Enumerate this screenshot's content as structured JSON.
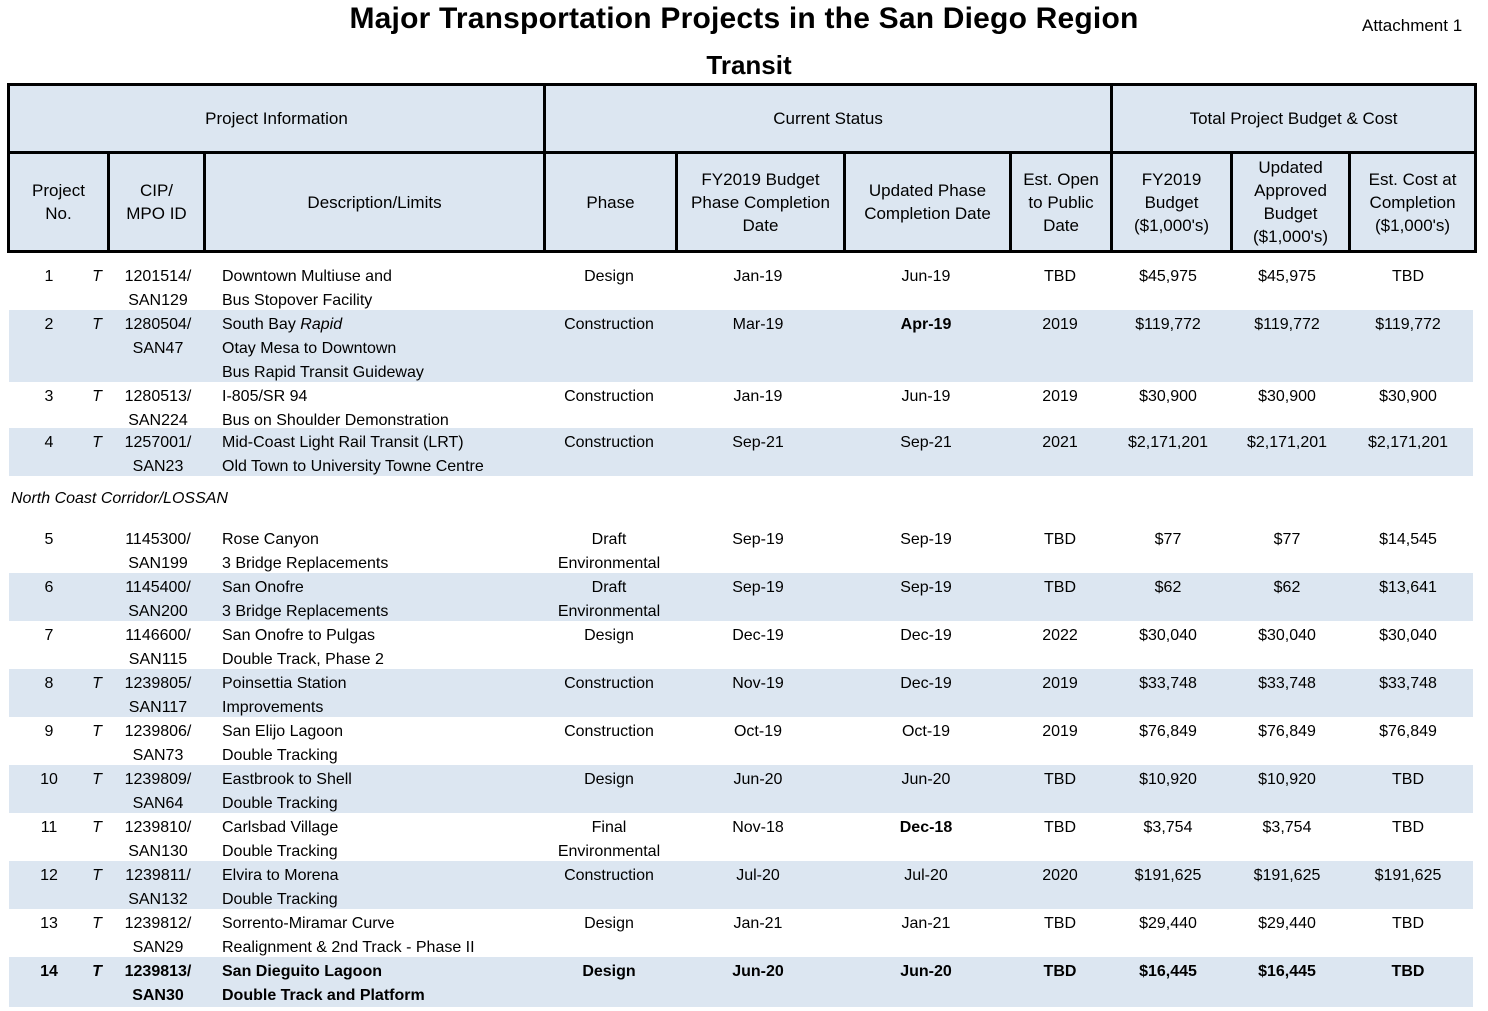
{
  "title": "Major Transportation Projects in the San Diego Region",
  "attachment": "Attachment 1",
  "subtitle": "Transit",
  "header": {
    "groups": [
      "Project Information",
      "Current Status",
      "Total Project Budget & Cost"
    ],
    "columns": [
      [
        "Project",
        "No."
      ],
      [
        "CIP/",
        "MPO ID"
      ],
      [
        "Description/Limits"
      ],
      [
        "Phase"
      ],
      [
        "FY2019 Budget",
        "Phase Completion",
        "Date"
      ],
      [
        "Updated Phase",
        "Completion Date"
      ],
      [
        "Est. Open",
        "to Public",
        "Date"
      ],
      [
        "FY2019",
        "Budget",
        "($1,000's)"
      ],
      [
        "Updated",
        "Approved",
        "Budget",
        "($1,000's)"
      ],
      [
        "Est. Cost at",
        "Completion",
        "($1,000's)"
      ]
    ]
  },
  "section_label": "North Coast Corridor/LOSSAN",
  "rows": [
    {
      "no": "1",
      "t": "T",
      "cip": [
        "1201514/",
        "SAN129"
      ],
      "desc": [
        [
          "Downtown Multiuse and"
        ],
        [
          "Bus Stopover Facility"
        ]
      ],
      "phase": [
        "Design"
      ],
      "fy": "Jan-19",
      "upd": "Jun-19",
      "open": "TBD",
      "b1": "$45,975",
      "b2": "$45,975",
      "b3": "TBD"
    },
    {
      "no": "2",
      "t": "T",
      "cip": [
        "1280504/",
        "SAN47"
      ],
      "desc": [
        [
          "South Bay ",
          "Rapid"
        ],
        [
          "Otay Mesa to Downtown"
        ],
        [
          "Bus Rapid Transit Guideway"
        ]
      ],
      "phase": [
        "Construction"
      ],
      "fy": "Mar-19",
      "upd": "Apr-19",
      "open": "2019",
      "b1": "$119,772",
      "b2": "$119,772",
      "b3": "$119,772"
    },
    {
      "no": "3",
      "t": "T",
      "cip": [
        "1280513/",
        "SAN224"
      ],
      "desc": [
        [
          "I-805/SR 94"
        ],
        [
          "Bus on Shoulder Demonstration"
        ]
      ],
      "phase": [
        "Construction"
      ],
      "fy": "Jan-19",
      "upd": "Jun-19",
      "open": "2019",
      "b1": "$30,900",
      "b2": "$30,900",
      "b3": "$30,900"
    },
    {
      "no": "4",
      "t": "T",
      "cip": [
        "1257001/",
        "SAN23"
      ],
      "desc": [
        [
          "Mid-Coast Light Rail Transit (LRT)"
        ],
        [
          "Old Town to University Towne Centre"
        ]
      ],
      "phase": [
        "Construction"
      ],
      "fy": "Sep-21",
      "upd": "Sep-21",
      "open": "2021",
      "b1": "$2,171,201",
      "b2": "$2,171,201",
      "b3": "$2,171,201"
    },
    {
      "no": "5",
      "t": "",
      "cip": [
        "1145300/",
        "SAN199"
      ],
      "desc": [
        [
          "Rose Canyon"
        ],
        [
          "3 Bridge Replacements"
        ]
      ],
      "phase": [
        "Draft",
        "Environmental"
      ],
      "fy": "Sep-19",
      "upd": "Sep-19",
      "open": "TBD",
      "b1": "$77",
      "b2": "$77",
      "b3": "$14,545"
    },
    {
      "no": "6",
      "t": "",
      "cip": [
        "1145400/",
        "SAN200"
      ],
      "desc": [
        [
          "San Onofre"
        ],
        [
          "3 Bridge Replacements"
        ]
      ],
      "phase": [
        "Draft",
        "Environmental"
      ],
      "fy": "Sep-19",
      "upd": "Sep-19",
      "open": "TBD",
      "b1": "$62",
      "b2": "$62",
      "b3": "$13,641"
    },
    {
      "no": "7",
      "t": "",
      "cip": [
        "1146600/",
        "SAN115"
      ],
      "desc": [
        [
          "San Onofre to Pulgas"
        ],
        [
          "Double Track, Phase 2"
        ]
      ],
      "phase": [
        "Design"
      ],
      "fy": "Dec-19",
      "upd": "Dec-19",
      "open": "2022",
      "b1": "$30,040",
      "b2": "$30,040",
      "b3": "$30,040"
    },
    {
      "no": "8",
      "t": "T",
      "cip": [
        "1239805/",
        "SAN117"
      ],
      "desc": [
        [
          "Poinsettia Station"
        ],
        [
          "Improvements"
        ]
      ],
      "phase": [
        "Construction"
      ],
      "fy": "Nov-19",
      "upd": "Dec-19",
      "open": "2019",
      "b1": "$33,748",
      "b2": "$33,748",
      "b3": "$33,748"
    },
    {
      "no": "9",
      "t": "T",
      "cip": [
        "1239806/",
        "SAN73"
      ],
      "desc": [
        [
          "San Elijo Lagoon"
        ],
        [
          "Double Tracking"
        ]
      ],
      "phase": [
        "Construction"
      ],
      "fy": "Oct-19",
      "upd": "Oct-19",
      "open": "2019",
      "b1": "$76,849",
      "b2": "$76,849",
      "b3": "$76,849"
    },
    {
      "no": "10",
      "t": "T",
      "cip": [
        "1239809/",
        "SAN64"
      ],
      "desc": [
        [
          "Eastbrook to Shell"
        ],
        [
          "Double Tracking"
        ]
      ],
      "phase": [
        "Design"
      ],
      "fy": "Jun-20",
      "upd": "Jun-20",
      "open": "TBD",
      "b1": "$10,920",
      "b2": "$10,920",
      "b3": "TBD"
    },
    {
      "no": "11",
      "t": "T",
      "cip": [
        "1239810/",
        "SAN130"
      ],
      "desc": [
        [
          "Carlsbad Village"
        ],
        [
          "Double Tracking"
        ]
      ],
      "phase": [
        "Final",
        "Environmental"
      ],
      "fy": "Nov-18",
      "upd": "Dec-18",
      "open": "TBD",
      "b1": "$3,754",
      "b2": "$3,754",
      "b3": "TBD"
    },
    {
      "no": "12",
      "t": "T",
      "cip": [
        "1239811/",
        "SAN132"
      ],
      "desc": [
        [
          "Elvira to Morena"
        ],
        [
          "Double Tracking"
        ]
      ],
      "phase": [
        "Construction"
      ],
      "fy": "Jul-20",
      "upd": "Jul-20",
      "open": "2020",
      "b1": "$191,625",
      "b2": "$191,625",
      "b3": "$191,625"
    },
    {
      "no": "13",
      "t": "T",
      "cip": [
        "1239812/",
        "SAN29"
      ],
      "desc": [
        [
          "Sorrento-Miramar Curve"
        ],
        [
          "Realignment & 2nd Track - Phase II"
        ]
      ],
      "phase": [
        "Design"
      ],
      "fy": "Jan-21",
      "upd": "Jan-21",
      "open": "TBD",
      "b1": "$29,440",
      "b2": "$29,440",
      "b3": "TBD"
    },
    {
      "no": "14",
      "t": "T",
      "cip": [
        "1239813/",
        "SAN30"
      ],
      "desc": [
        [
          "San Dieguito Lagoon"
        ],
        [
          "Double Track and Platform"
        ]
      ],
      "phase": [
        "Design"
      ],
      "fy": "Jun-20",
      "upd": "Jun-20",
      "open": "TBD",
      "b1": "$16,445",
      "b2": "$16,445",
      "b3": "TBD"
    }
  ]
}
